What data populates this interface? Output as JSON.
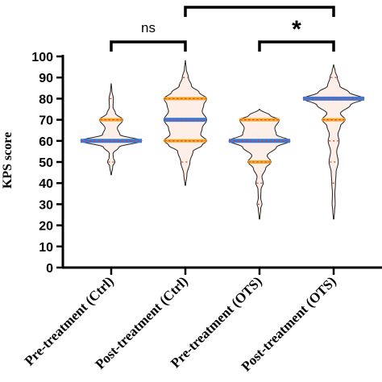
{
  "chart_data": {
    "type": "violin",
    "title": "",
    "xlabel": "",
    "ylabel": "KPS score",
    "ylim": [
      0,
      100
    ],
    "yticks": [
      0,
      10,
      20,
      30,
      40,
      50,
      60,
      70,
      80,
      90,
      100
    ],
    "categories": [
      "Pre-treatment (Ctrl)",
      "Post-treatment (Ctrl)",
      "Pre-treatment (OTS)",
      "Post-treatment (OTS)"
    ],
    "series": [
      {
        "min": 44,
        "max": 87,
        "median": 60,
        "q1": 60,
        "q3": 70,
        "density": [
          [
            44,
            0.01
          ],
          [
            48,
            0.05
          ],
          [
            50,
            0.12
          ],
          [
            52,
            0.07
          ],
          [
            54,
            0.06
          ],
          [
            57,
            0.25
          ],
          [
            60,
            1.0
          ],
          [
            63,
            0.28
          ],
          [
            66,
            0.2
          ],
          [
            70,
            0.38
          ],
          [
            73,
            0.14
          ],
          [
            76,
            0.06
          ],
          [
            80,
            0.07
          ],
          [
            84,
            0.02
          ],
          [
            87,
            0.005
          ]
        ]
      },
      {
        "min": 39,
        "max": 98,
        "median": 70,
        "q1": 60,
        "q3": 80,
        "density": [
          [
            39,
            0.01
          ],
          [
            44,
            0.05
          ],
          [
            50,
            0.15
          ],
          [
            55,
            0.25
          ],
          [
            58,
            0.55
          ],
          [
            60,
            0.7
          ],
          [
            63,
            0.5
          ],
          [
            66,
            0.55
          ],
          [
            70,
            0.7
          ],
          [
            74,
            0.55
          ],
          [
            77,
            0.6
          ],
          [
            80,
            0.7
          ],
          [
            83,
            0.45
          ],
          [
            86,
            0.2
          ],
          [
            90,
            0.1
          ],
          [
            94,
            0.03
          ],
          [
            98,
            0.005
          ]
        ]
      },
      {
        "min": 23,
        "max": 75,
        "median": 60,
        "q1": 50,
        "q3": 70,
        "density": [
          [
            23,
            0.01
          ],
          [
            28,
            0.04
          ],
          [
            30,
            0.08
          ],
          [
            33,
            0.04
          ],
          [
            37,
            0.05
          ],
          [
            40,
            0.12
          ],
          [
            43,
            0.08
          ],
          [
            47,
            0.2
          ],
          [
            50,
            0.38
          ],
          [
            53,
            0.25
          ],
          [
            57,
            0.55
          ],
          [
            60,
            1.0
          ],
          [
            63,
            0.55
          ],
          [
            66,
            0.5
          ],
          [
            70,
            0.65
          ],
          [
            72,
            0.35
          ],
          [
            75,
            0.005
          ]
        ]
      },
      {
        "min": 23,
        "max": 96,
        "median": 80,
        "q1": 70,
        "q3": 80,
        "density": [
          [
            23,
            0.01
          ],
          [
            27,
            0.03
          ],
          [
            30,
            0.05
          ],
          [
            35,
            0.04
          ],
          [
            40,
            0.06
          ],
          [
            45,
            0.08
          ],
          [
            50,
            0.15
          ],
          [
            55,
            0.1
          ],
          [
            60,
            0.18
          ],
          [
            63,
            0.14
          ],
          [
            67,
            0.22
          ],
          [
            70,
            0.38
          ],
          [
            73,
            0.22
          ],
          [
            77,
            0.55
          ],
          [
            80,
            1.0
          ],
          [
            83,
            0.5
          ],
          [
            86,
            0.2
          ],
          [
            90,
            0.12
          ],
          [
            93,
            0.05
          ],
          [
            96,
            0.005
          ]
        ]
      }
    ],
    "significance": [
      {
        "between": [
          1,
          2
        ],
        "label": "ns"
      },
      {
        "between": [
          3,
          4
        ],
        "label": "*"
      },
      {
        "between": [
          2,
          4
        ],
        "label": ""
      }
    ]
  }
}
